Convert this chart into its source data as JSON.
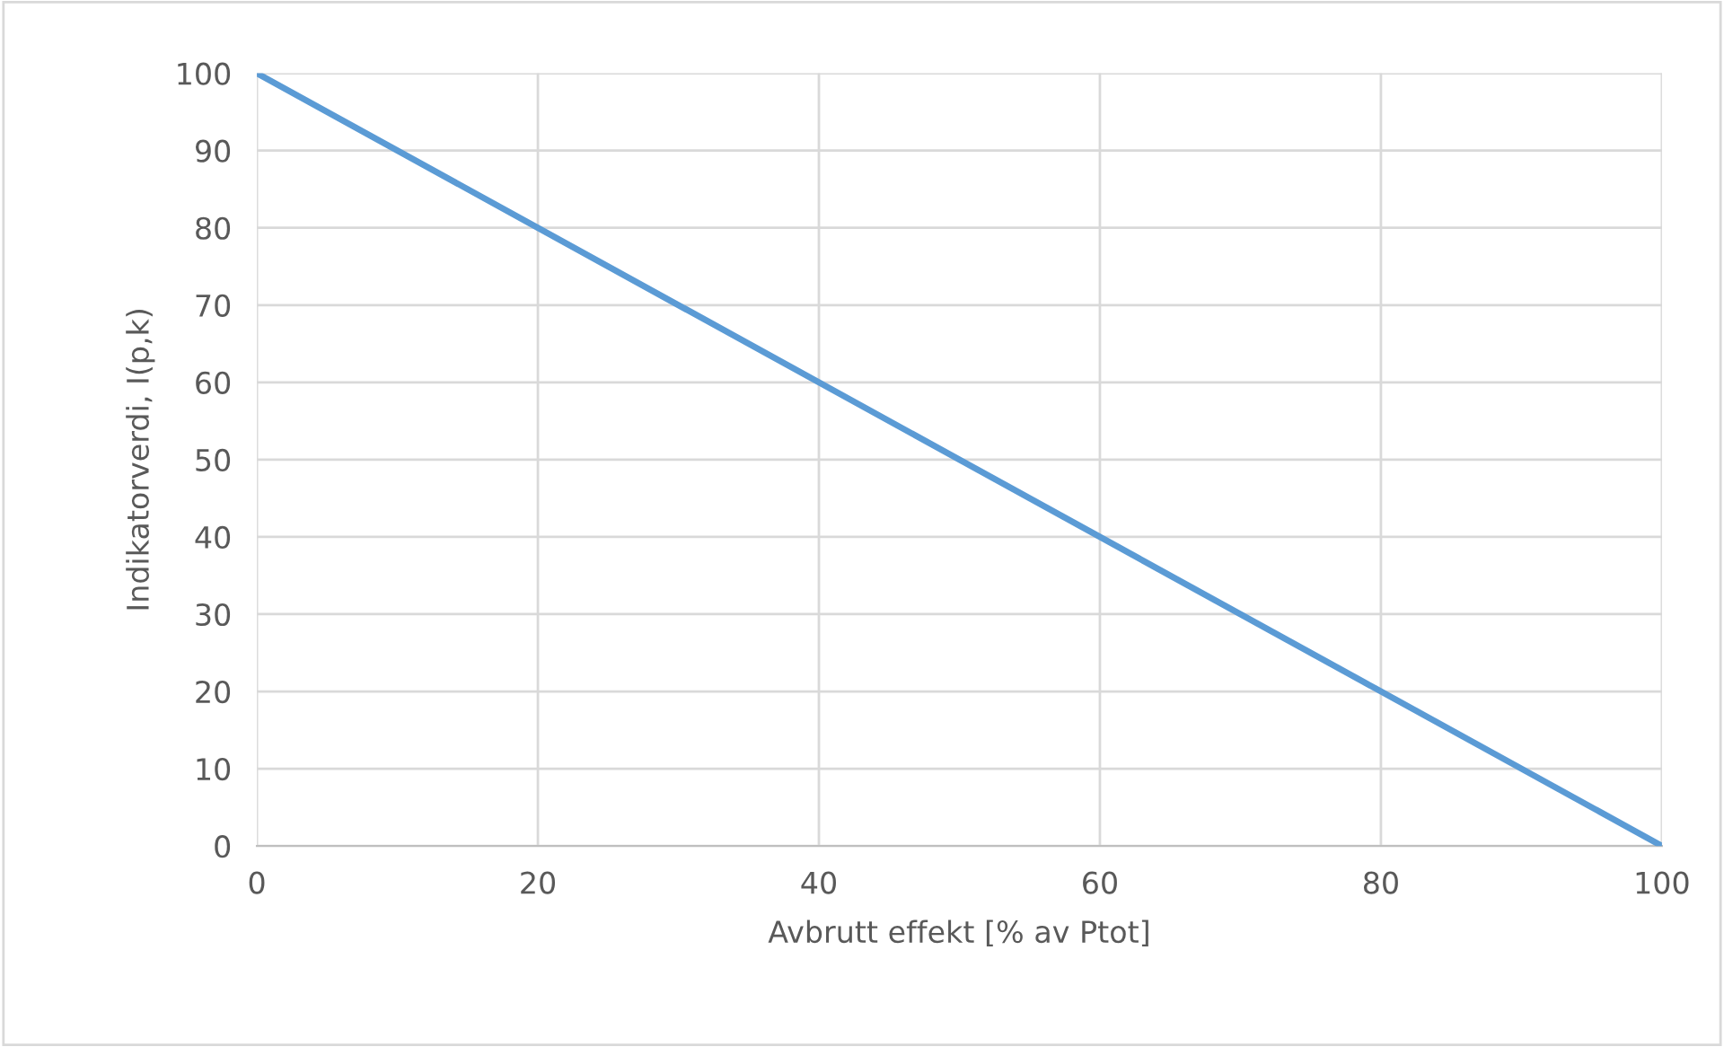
{
  "chart_data": {
    "type": "line",
    "xlabel": "Avbrutt effekt [% av Ptot]",
    "ylabel": "Indikatorverdi, I(p,k)",
    "series": [
      {
        "color": "#5b9bd5",
        "x": [
          0,
          100
        ],
        "values": [
          100,
          0
        ]
      }
    ],
    "xlim": [
      0,
      100
    ],
    "xticks": [
      0,
      20,
      40,
      60,
      80,
      100
    ],
    "ylim": [
      0,
      100
    ],
    "yticks": [
      0,
      10,
      20,
      30,
      40,
      50,
      60,
      70,
      80,
      90,
      100
    ],
    "grid": true,
    "marker": "none",
    "line_style": "solid"
  }
}
